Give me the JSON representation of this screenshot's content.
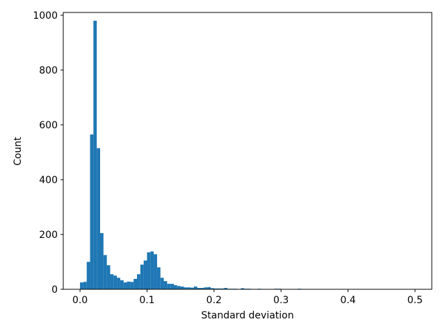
{
  "chart_data": {
    "type": "bar",
    "title": "",
    "xlabel": "Standard deviation",
    "ylabel": "Count",
    "xlim": [
      -0.025,
      0.525
    ],
    "ylim": [
      0,
      1010
    ],
    "xticks": [
      0.0,
      0.1,
      0.2,
      0.3,
      0.4,
      0.5
    ],
    "xtick_labels": [
      "0.0",
      "0.1",
      "0.2",
      "0.3",
      "0.4",
      "0.5"
    ],
    "yticks": [
      0,
      200,
      400,
      600,
      800,
      1000
    ],
    "ytick_labels": [
      "0",
      "200",
      "400",
      "600",
      "800",
      "1000"
    ],
    "bin_start": 0.0,
    "bin_width": 0.005,
    "grid": false,
    "legend": "none",
    "color": "#1f77b4",
    "values": [
      25,
      27,
      100,
      565,
      980,
      515,
      205,
      125,
      88,
      55,
      50,
      42,
      33,
      25,
      28,
      27,
      38,
      55,
      90,
      105,
      135,
      138,
      128,
      80,
      42,
      30,
      20,
      20,
      15,
      12,
      10,
      7,
      7,
      6,
      10,
      5,
      5,
      7,
      8,
      4,
      3,
      3,
      3,
      5,
      2,
      2,
      2,
      1,
      4,
      2,
      2,
      1,
      1,
      2,
      1,
      1,
      1,
      1,
      2,
      2,
      1,
      1,
      1,
      1,
      1,
      2,
      1,
      1,
      1,
      1,
      1,
      1,
      1,
      1,
      1,
      1,
      1,
      1,
      1,
      1,
      1,
      1,
      1,
      1,
      1,
      1,
      1,
      1,
      1,
      1,
      1,
      1,
      1,
      1,
      1,
      1,
      1,
      1,
      1,
      1
    ]
  }
}
